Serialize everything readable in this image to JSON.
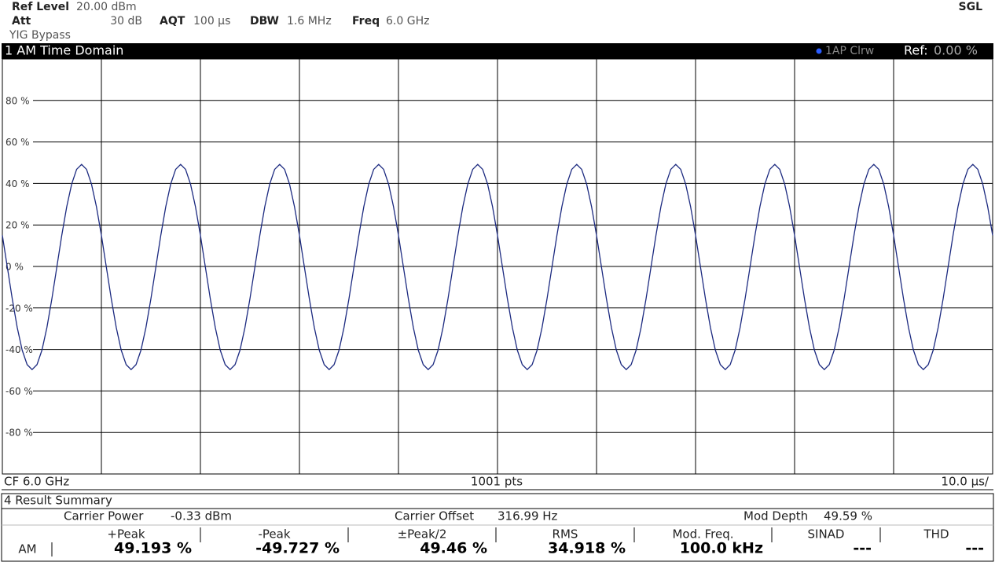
{
  "header": {
    "ref_level_label": "Ref Level",
    "ref_level": "20.00 dBm",
    "att_label": "Att",
    "att": "30 dB",
    "aqt_label": "AQT",
    "aqt": "100 µs",
    "dbw_label": "DBW",
    "dbw": "1.6 MHz",
    "freq_label": "Freq",
    "freq": "6.0 GHz",
    "yig": "YIG Bypass",
    "mode": "SGL"
  },
  "chart_data": {
    "type": "line",
    "title": "1 AM Time Domain",
    "trace_label": "1AP Clrw",
    "ref_label": "Ref:",
    "ref": "0.00 %",
    "footer_left": "CF 6.0 GHz",
    "footer_center": "1001 pts",
    "footer_right": "10.0 µs/",
    "x": [
      0,
      0.5,
      1,
      1.5,
      2,
      2.5,
      3,
      3.5,
      4,
      4.5,
      5,
      5.5,
      6,
      6.5,
      7,
      7.5,
      8,
      8.5,
      9,
      9.5,
      10,
      10.5,
      11,
      11.5,
      12,
      12.5,
      13,
      13.5,
      14,
      14.5,
      15,
      15.5,
      16,
      16.5,
      17,
      17.5,
      18,
      18.5,
      19,
      19.5,
      20,
      20.5,
      21,
      21.5,
      22,
      22.5,
      23,
      23.5,
      24,
      24.5,
      25,
      25.5,
      26,
      26.5,
      27,
      27.5,
      28,
      28.5,
      29,
      29.5,
      30,
      30.5,
      31,
      31.5,
      32,
      32.5,
      33,
      33.5,
      34,
      34.5,
      35,
      35.5,
      36,
      36.5,
      37,
      37.5,
      38,
      38.5,
      39,
      39.5,
      40,
      40.5,
      41,
      41.5,
      42,
      42.5,
      43,
      43.5,
      44,
      44.5,
      45,
      45.5,
      46,
      46.5,
      47,
      47.5,
      48,
      48.5,
      49,
      49.5,
      50,
      50.5,
      51,
      51.5,
      52,
      52.5,
      53,
      53.5,
      54,
      54.5,
      55,
      55.5,
      56,
      56.5,
      57,
      57.5,
      58,
      58.5,
      59,
      59.5,
      60,
      60.5,
      61,
      61.5,
      62,
      62.5,
      63,
      63.5,
      64,
      64.5,
      65,
      65.5,
      66,
      66.5,
      67,
      67.5,
      68,
      68.5,
      69,
      69.5,
      70,
      70.5,
      71,
      71.5,
      72,
      72.5,
      73,
      73.5,
      74,
      74.5,
      75,
      75.5,
      76,
      76.5,
      77,
      77.5,
      78,
      78.5,
      79,
      79.5,
      80,
      80.5,
      81,
      81.5,
      82,
      82.5,
      83,
      83.5,
      84,
      84.5,
      85,
      85.5,
      86,
      86.5,
      87,
      87.5,
      88,
      88.5,
      89,
      89.5,
      90,
      90.5,
      91,
      91.5,
      92,
      92.5,
      93,
      93.5,
      94,
      94.5,
      95,
      95.5,
      96,
      96.5,
      97,
      97.5,
      98,
      98.5,
      99,
      99.5,
      100
    ],
    "series": [
      {
        "color": "#1c2a80",
        "values": [
          15.0,
          -0.3,
          -15.6,
          -29.4,
          -40.3,
          -47.3,
          -49.7,
          -47.3,
          -40.3,
          -29.4,
          -15.6,
          -0.3,
          15.0,
          28.8,
          39.7,
          46.8,
          49.2,
          46.8,
          39.7,
          28.8,
          15.0,
          -0.3,
          -15.6,
          -29.4,
          -40.3,
          -47.3,
          -49.7,
          -47.3,
          -40.3,
          -29.4,
          -15.6,
          -0.3,
          15.0,
          28.8,
          39.7,
          46.8,
          49.2,
          46.8,
          39.7,
          28.8,
          15.0,
          -0.3,
          -15.6,
          -29.4,
          -40.3,
          -47.3,
          -49.7,
          -47.3,
          -40.3,
          -29.4,
          -15.6,
          -0.3,
          15.0,
          28.8,
          39.7,
          46.8,
          49.2,
          46.8,
          39.7,
          28.8,
          15.0,
          -0.3,
          -15.6,
          -29.4,
          -40.3,
          -47.3,
          -49.7,
          -47.3,
          -40.3,
          -29.4,
          -15.6,
          -0.3,
          15.0,
          28.8,
          39.7,
          46.8,
          49.2,
          46.8,
          39.7,
          28.8,
          15.0,
          -0.3,
          -15.6,
          -29.4,
          -40.3,
          -47.3,
          -49.7,
          -47.3,
          -40.3,
          -29.4,
          -15.6,
          -0.3,
          15.0,
          28.8,
          39.7,
          46.8,
          49.2,
          46.8,
          39.7,
          28.8,
          15.0,
          -0.3,
          -15.6,
          -29.4,
          -40.3,
          -47.3,
          -49.7,
          -47.3,
          -40.3,
          -29.4,
          -15.6,
          -0.3,
          15.0,
          28.8,
          39.7,
          46.8,
          49.2,
          46.8,
          39.7,
          28.8,
          15.0,
          -0.3,
          -15.6,
          -29.4,
          -40.3,
          -47.3,
          -49.7,
          -47.3,
          -40.3,
          -29.4,
          -15.6,
          -0.3,
          15.0,
          28.8,
          39.7,
          46.8,
          49.2,
          46.8,
          39.7,
          28.8,
          15.0,
          -0.3,
          -15.6,
          -29.4,
          -40.3,
          -47.3,
          -49.7,
          -47.3,
          -40.3,
          -29.4,
          -15.6,
          -0.3,
          15.0,
          28.8,
          39.7,
          46.8,
          49.2,
          46.8,
          39.7,
          28.8,
          15.0,
          -0.3,
          -15.6,
          -29.4,
          -40.3,
          -47.3,
          -49.7,
          -47.3,
          -40.3,
          -29.4,
          -15.6,
          -0.3,
          15.0,
          28.8,
          39.7,
          46.8,
          49.2,
          46.8,
          39.7,
          28.8,
          15.0,
          -0.3,
          -15.6,
          -29.4,
          -40.3,
          -47.3,
          -49.7,
          -47.3,
          -40.3,
          -29.4,
          -15.6,
          -0.3,
          15.0,
          28.8,
          39.7,
          46.8,
          49.2,
          46.8,
          39.7,
          28.8,
          15.0
        ]
      }
    ],
    "xlim": [
      0,
      100
    ],
    "xticks": [
      0,
      10,
      20,
      30,
      40,
      50,
      60,
      70,
      80,
      90,
      100
    ],
    "ylim": [
      -100,
      100
    ],
    "yticks": [
      {
        "value": 80,
        "label": "80 %"
      },
      {
        "value": 60,
        "label": "60 %"
      },
      {
        "value": 40,
        "label": "40 %"
      },
      {
        "value": 20,
        "label": "20 %"
      },
      {
        "value": 0,
        "label": "0 %"
      },
      {
        "value": -20,
        "label": "-20 %"
      },
      {
        "value": -40,
        "label": "-40 %"
      },
      {
        "value": -60,
        "label": "-60 %"
      },
      {
        "value": -80,
        "label": "-80 %"
      }
    ],
    "grid": true
  },
  "result_summary": {
    "title": "4 Result Summary",
    "carrier_power_label": "Carrier Power",
    "carrier_power": "-0.33 dBm",
    "carrier_offset_label": "Carrier Offset",
    "carrier_offset": "316.99 Hz",
    "mod_depth_label": "Mod Depth",
    "mod_depth": "49.59 %",
    "columns": [
      "+Peak",
      "-Peak",
      "±Peak/2",
      "RMS",
      "Mod. Freq.",
      "SINAD",
      "THD"
    ],
    "row_label": "AM",
    "row": [
      "49.193 %",
      "-49.727 %",
      "49.46 %",
      "34.918 %",
      "100.0 kHz",
      "---",
      "---"
    ]
  }
}
